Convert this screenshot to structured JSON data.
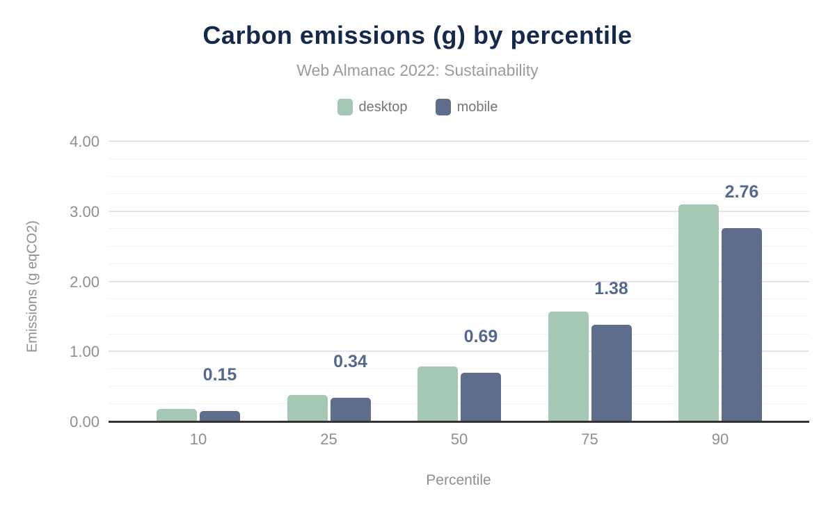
{
  "chart_data": {
    "type": "bar",
    "title": "Carbon emissions (g) by percentile",
    "subtitle": "Web Almanac 2022: Sustainability",
    "xlabel": "Percentile",
    "ylabel": "Emissions (g eqCO2)",
    "categories": [
      "10",
      "25",
      "50",
      "75",
      "90"
    ],
    "series": [
      {
        "name": "desktop",
        "color": "#a5c8b4",
        "values": [
          0.18,
          0.38,
          0.78,
          1.57,
          3.1
        ]
      },
      {
        "name": "mobile",
        "color": "#5e6d8c",
        "values": [
          0.15,
          0.34,
          0.69,
          1.38,
          2.76
        ]
      }
    ],
    "data_labels": {
      "series": "mobile",
      "values": [
        "0.15",
        "0.34",
        "0.69",
        "1.38",
        "2.76"
      ],
      "color": "#55688f"
    },
    "ylim": [
      0,
      4
    ],
    "y_ticks": [
      "0.00",
      "1.00",
      "2.00",
      "3.00",
      "4.00"
    ],
    "y_major_step": 1,
    "y_minor_step": 0.25,
    "grid": true,
    "legend_position": "top",
    "colors": {
      "background": "#ffffff",
      "title": "#14294b",
      "subtitle": "#9b9b9b",
      "axis_text": "#8f8f8f",
      "legend_text": "#757575",
      "grid_major": "#e4e4e4",
      "grid_minor": "#f4f4f4",
      "axis_line": "#333333"
    }
  }
}
